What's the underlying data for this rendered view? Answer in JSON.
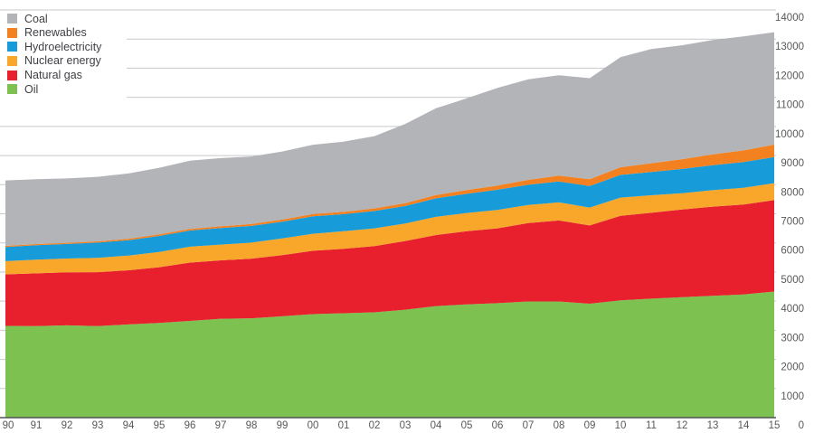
{
  "chart_data": {
    "type": "area",
    "stacked": true,
    "title": "",
    "xlabel": "",
    "ylabel": "",
    "ylim": [
      0,
      14000
    ],
    "y_tick_step": 1000,
    "y_tick_labels": [
      "14000",
      "13000",
      "12000",
      "11000",
      "10000",
      "9000",
      "8000",
      "7000",
      "6000",
      "5000",
      "4000",
      "3000",
      "2000",
      "1000",
      "0"
    ],
    "x_tick_labels": [
      "90",
      "91",
      "92",
      "93",
      "94",
      "95",
      "96",
      "97",
      "98",
      "99",
      "00",
      "01",
      "02",
      "03",
      "04",
      "05",
      "06",
      "07",
      "08",
      "09",
      "10",
      "11",
      "12",
      "13",
      "14",
      "15"
    ],
    "grid": "horizontal",
    "legend_position": "top-left",
    "legend": [
      {
        "key": "coal",
        "label": "Coal",
        "color": "#b2b4b7"
      },
      {
        "key": "renewables",
        "label": "Renewables",
        "color": "#f48120"
      },
      {
        "key": "hydro",
        "label": "Hydroelectricity",
        "color": "#189cd9"
      },
      {
        "key": "nuclear",
        "label": "Nuclear energy",
        "color": "#f9a72b"
      },
      {
        "key": "gas",
        "label": "Natural gas",
        "color": "#e8202e"
      },
      {
        "key": "oil",
        "label": "Oil",
        "color": "#7dc150"
      }
    ],
    "series": [
      {
        "key": "oil",
        "name": "Oil",
        "color": "#7dc150",
        "values": [
          3150,
          3145,
          3170,
          3145,
          3200,
          3250,
          3320,
          3395,
          3410,
          3480,
          3555,
          3585,
          3615,
          3705,
          3830,
          3890,
          3930,
          3990,
          3990,
          3910,
          4030,
          4085,
          4135,
          4185,
          4230,
          4330
        ]
      },
      {
        "key": "gas",
        "name": "Natural gas",
        "color": "#e8202e",
        "values": [
          1769,
          1808,
          1818,
          1850,
          1860,
          1915,
          2005,
          2005,
          2050,
          2100,
          2175,
          2215,
          2275,
          2360,
          2440,
          2510,
          2570,
          2690,
          2780,
          2690,
          2900,
          2950,
          3010,
          3060,
          3090,
          3140
        ]
      },
      {
        "key": "nuclear",
        "name": "Nuclear energy",
        "color": "#f9a72b",
        "values": [
          453,
          471,
          475,
          492,
          505,
          525,
          544,
          541,
          551,
          572,
          585,
          601,
          611,
          599,
          625,
          627,
          635,
          622,
          620,
          615,
          626,
          600,
          560,
          564,
          575,
          583
        ]
      },
      {
        "key": "hydro",
        "name": "Hydroelectricity",
        "color": "#189cd9",
        "values": [
          489,
          497,
          499,
          522,
          529,
          549,
          558,
          571,
          574,
          579,
          601,
          586,
          595,
          602,
          635,
          660,
          690,
          695,
          720,
          740,
          780,
          800,
          835,
          860,
          880,
          893
        ]
      },
      {
        "key": "renewables",
        "name": "Renewables",
        "color": "#f48120",
        "values": [
          36,
          39,
          42,
          45,
          49,
          52,
          56,
          60,
          64,
          69,
          75,
          81,
          89,
          99,
          112,
          127,
          146,
          168,
          200,
          230,
          264,
          300,
          335,
          370,
          400,
          430
        ]
      },
      {
        "key": "coal",
        "name": "Coal",
        "color": "#b2b4b7",
        "values": [
          2250,
          2230,
          2210,
          2215,
          2240,
          2290,
          2340,
          2340,
          2320,
          2340,
          2380,
          2410,
          2480,
          2720,
          2980,
          3150,
          3350,
          3450,
          3450,
          3470,
          3780,
          3920,
          3910,
          3930,
          3920,
          3860
        ]
      }
    ],
    "colors": {
      "gridline": "#c8c9cb",
      "axis_line": "#515256",
      "tick_text": "#58595b",
      "legend_text": "#414145",
      "background": "#ffffff"
    }
  }
}
